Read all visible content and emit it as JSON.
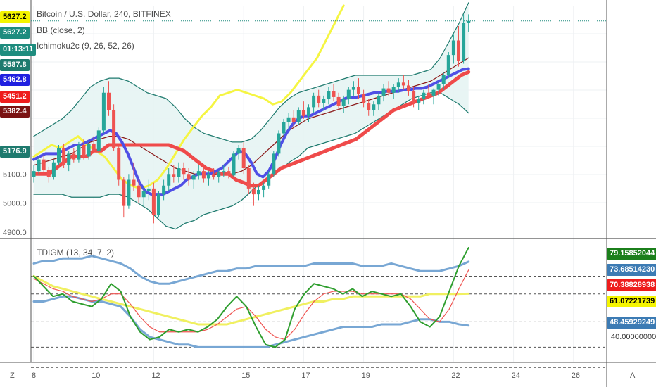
{
  "header": {
    "symbol_title": "Bitcoin / U.S. Dollar, 240, BITFINEX",
    "indicator_1": "BB (close, 2)",
    "indicator_2": "Ichimoku2c (9, 26, 52, 26)",
    "osc_title": "TDIGM (13, 34, 7, 2)"
  },
  "left_badges": [
    {
      "text": "5627.2",
      "bg": "#f5f500",
      "fg": "#000000"
    },
    {
      "text": "5627.2",
      "bg": "#1e8c7e",
      "fg": "#ffffff"
    },
    {
      "text": "01:13:11",
      "bg": "#1e8c7e",
      "fg": "#ffffff"
    },
    {
      "text": "5587.8",
      "bg": "#1e7a6e",
      "fg": "#ffffff"
    },
    {
      "text": "5462.8",
      "bg": "#1f1fe0",
      "fg": "#ffffff"
    },
    {
      "text": "5451.2",
      "bg": "#ee1c1c",
      "fg": "#ffffff"
    },
    {
      "text": "5382.4",
      "bg": "#7a1212",
      "fg": "#ffffff"
    },
    {
      "text": "5176.9",
      "bg": "#1e7a6e",
      "fg": "#ffffff"
    }
  ],
  "right_badges": [
    {
      "text": "79.15852044",
      "bg": "#1b7f1b"
    },
    {
      "text": "73.68514230",
      "bg": "#3c7bb4"
    },
    {
      "text": "70.38828938",
      "bg": "#ee1c1c"
    },
    {
      "text": "61.07221739",
      "bg": "#f5f500"
    },
    {
      "text": "48.45929249",
      "bg": "#3c7bb4"
    }
  ],
  "right_plain_label": "40.00000000",
  "price_axis_labels": [
    "5100.0",
    "5000.0",
    "4900.0"
  ],
  "date_labels": [
    "8",
    "10",
    "12",
    "15",
    "17",
    "19",
    "22",
    "24",
    "26"
  ],
  "corner_left": "Z",
  "corner_right": "A",
  "colors": {
    "up": "#26a69a",
    "down": "#ef5350",
    "tenkan": "#4f4fe6",
    "kijun": "#ef4a4a",
    "chikou": "#f5f542",
    "bb_band": "#1e7a6e",
    "bb_mid": "#8b1a1a",
    "osc_green": "#2e9e2e",
    "osc_red": "#ef5350",
    "osc_yellow": "#f0f060",
    "osc_blue": "#78a7d4"
  },
  "chart_data": {
    "type": "candlestick",
    "price_axis": {
      "ylim": [
        4880,
        5680
      ],
      "labeled_ticks": [
        5000,
        5100
      ]
    },
    "x_dates": [
      "8",
      "10",
      "12",
      "15",
      "17",
      "19",
      "22",
      "24",
      "26"
    ],
    "x_date_index": [
      0,
      12,
      24,
      42,
      54,
      66,
      84,
      96,
      108
    ],
    "candles": [
      [
        5090,
        5130,
        5070,
        5110
      ],
      [
        5110,
        5160,
        5100,
        5150
      ],
      [
        5150,
        5165,
        5100,
        5115
      ],
      [
        5115,
        5125,
        5070,
        5090
      ],
      [
        5090,
        5150,
        5080,
        5140
      ],
      [
        5140,
        5200,
        5130,
        5190
      ],
      [
        5190,
        5205,
        5120,
        5130
      ],
      [
        5130,
        5180,
        5110,
        5170
      ],
      [
        5170,
        5190,
        5140,
        5150
      ],
      [
        5150,
        5210,
        5140,
        5200
      ],
      [
        5200,
        5220,
        5150,
        5160
      ],
      [
        5160,
        5215,
        5150,
        5205
      ],
      [
        5205,
        5230,
        5170,
        5180
      ],
      [
        5180,
        5260,
        5170,
        5250
      ],
      [
        5250,
        5400,
        5240,
        5380
      ],
      [
        5380,
        5420,
        5300,
        5320
      ],
      [
        5320,
        5340,
        5180,
        5190
      ],
      [
        5190,
        5200,
        5060,
        5080
      ],
      [
        5080,
        5090,
        4950,
        4990
      ],
      [
        4990,
        5100,
        4980,
        5080
      ],
      [
        5080,
        5140,
        5040,
        5060
      ],
      [
        5060,
        5080,
        5000,
        5020
      ],
      [
        5020,
        5060,
        4990,
        5040
      ],
      [
        5040,
        5080,
        5010,
        5050
      ],
      [
        5050,
        5070,
        4930,
        4960
      ],
      [
        4960,
        5040,
        4950,
        5030
      ],
      [
        5030,
        5080,
        5010,
        5060
      ],
      [
        5060,
        5120,
        5040,
        5100
      ],
      [
        5100,
        5130,
        5070,
        5090
      ],
      [
        5090,
        5140,
        5070,
        5120
      ],
      [
        5120,
        5140,
        5080,
        5100
      ],
      [
        5100,
        5120,
        5060,
        5080
      ],
      [
        5080,
        5110,
        5050,
        5095
      ],
      [
        5095,
        5130,
        5080,
        5110
      ],
      [
        5110,
        5120,
        5070,
        5085
      ],
      [
        5085,
        5110,
        5060,
        5100
      ],
      [
        5100,
        5120,
        5080,
        5090
      ],
      [
        5090,
        5115,
        5070,
        5105
      ],
      [
        5105,
        5130,
        5090,
        5110
      ],
      [
        5110,
        5125,
        5085,
        5095
      ],
      [
        5095,
        5180,
        5090,
        5170
      ],
      [
        5170,
        5200,
        5150,
        5190
      ],
      [
        5190,
        5210,
        5100,
        5120
      ],
      [
        5120,
        5130,
        5030,
        5050
      ],
      [
        5050,
        5070,
        4990,
        5030
      ],
      [
        5030,
        5060,
        5010,
        5045
      ],
      [
        5045,
        5070,
        5020,
        5060
      ],
      [
        5060,
        5110,
        5050,
        5100
      ],
      [
        5100,
        5180,
        5090,
        5170
      ],
      [
        5170,
        5250,
        5160,
        5240
      ],
      [
        5240,
        5290,
        5230,
        5280
      ],
      [
        5280,
        5310,
        5250,
        5295
      ],
      [
        5295,
        5320,
        5260,
        5280
      ],
      [
        5280,
        5330,
        5270,
        5320
      ],
      [
        5320,
        5350,
        5290,
        5300
      ],
      [
        5300,
        5340,
        5280,
        5330
      ],
      [
        5330,
        5380,
        5310,
        5370
      ],
      [
        5370,
        5390,
        5330,
        5345
      ],
      [
        5345,
        5370,
        5320,
        5360
      ],
      [
        5360,
        5400,
        5340,
        5385
      ],
      [
        5385,
        5410,
        5350,
        5365
      ],
      [
        5365,
        5380,
        5320,
        5335
      ],
      [
        5335,
        5370,
        5310,
        5360
      ],
      [
        5360,
        5400,
        5340,
        5390
      ],
      [
        5390,
        5420,
        5370,
        5400
      ],
      [
        5400,
        5430,
        5360,
        5375
      ],
      [
        5375,
        5390,
        5330,
        5345
      ],
      [
        5345,
        5360,
        5300,
        5320
      ],
      [
        5320,
        5350,
        5300,
        5340
      ],
      [
        5340,
        5380,
        5320,
        5370
      ],
      [
        5370,
        5410,
        5350,
        5395
      ],
      [
        5395,
        5420,
        5370,
        5380
      ],
      [
        5380,
        5410,
        5360,
        5400
      ],
      [
        5400,
        5430,
        5380,
        5415
      ],
      [
        5415,
        5440,
        5390,
        5405
      ],
      [
        5405,
        5425,
        5370,
        5385
      ],
      [
        5385,
        5400,
        5330,
        5345
      ],
      [
        5345,
        5370,
        5320,
        5360
      ],
      [
        5360,
        5390,
        5340,
        5380
      ],
      [
        5380,
        5410,
        5360,
        5370
      ],
      [
        5370,
        5395,
        5340,
        5390
      ],
      [
        5390,
        5420,
        5370,
        5410
      ],
      [
        5410,
        5450,
        5390,
        5440
      ],
      [
        5440,
        5520,
        5430,
        5510
      ],
      [
        5510,
        5580,
        5480,
        5560
      ],
      [
        5560,
        5610,
        5470,
        5490
      ],
      [
        5490,
        5650,
        5480,
        5620
      ],
      [
        5620,
        5650,
        5590,
        5627.2
      ]
    ],
    "tenkan": [
      5150,
      5160,
      5170,
      5170,
      5170,
      5180,
      5190,
      5200,
      5200,
      5210,
      5220,
      5230,
      5240,
      5250,
      5240,
      5210,
      5170,
      5120,
      5070,
      5040,
      5030,
      5030,
      5030,
      5040,
      5050,
      5060,
      5080,
      5090,
      5100,
      5100,
      5100,
      5110,
      5120,
      5140,
      5160,
      5180,
      5170,
      5140,
      5100,
      5090,
      5110,
      5150,
      5200,
      5240,
      5270,
      5290,
      5300,
      5300,
      5310,
      5320,
      5330,
      5340,
      5350,
      5360,
      5365,
      5365,
      5370,
      5375,
      5380,
      5380,
      5385,
      5385,
      5385,
      5390,
      5390,
      5395,
      5395,
      5400,
      5410,
      5420,
      5430,
      5440,
      5450,
      5460,
      5462.8
    ],
    "kijun": [
      5100,
      5100,
      5100,
      5120,
      5140,
      5160,
      5160,
      5160,
      5180,
      5180,
      5200,
      5200,
      5200,
      5200,
      5200,
      5200,
      5200,
      5200,
      5200,
      5190,
      5180,
      5160,
      5140,
      5120,
      5110,
      5100,
      5100,
      5080,
      5070,
      5060,
      5060,
      5080,
      5100,
      5120,
      5130,
      5140,
      5150,
      5160,
      5170,
      5180,
      5190,
      5200,
      5210,
      5220,
      5240,
      5260,
      5280,
      5300,
      5320,
      5330,
      5340,
      5350,
      5360,
      5370,
      5380,
      5400,
      5420,
      5440,
      5451.2
    ],
    "bb": {
      "upper": [
        5230,
        5250,
        5270,
        5290,
        5320,
        5360,
        5400,
        5420,
        5430,
        5430,
        5420,
        5400,
        5380,
        5370,
        5360,
        5330,
        5290,
        5260,
        5240,
        5230,
        5220,
        5210,
        5210,
        5220,
        5250,
        5290,
        5330,
        5360,
        5380,
        5390,
        5400,
        5410,
        5420,
        5430,
        5440,
        5440,
        5440,
        5440,
        5440,
        5440,
        5440,
        5450,
        5460,
        5500,
        5560,
        5620,
        5690
      ],
      "middle": [
        5130,
        5140,
        5150,
        5160,
        5170,
        5190,
        5210,
        5220,
        5230,
        5230,
        5220,
        5200,
        5180,
        5160,
        5140,
        5120,
        5110,
        5100,
        5100,
        5100,
        5100,
        5100,
        5110,
        5130,
        5160,
        5190,
        5220,
        5250,
        5270,
        5290,
        5300,
        5310,
        5320,
        5330,
        5340,
        5350,
        5360,
        5370,
        5380,
        5390,
        5400,
        5410,
        5420,
        5440,
        5460,
        5480,
        5500
      ],
      "lower": [
        5030,
        5030,
        5030,
        5030,
        5020,
        5020,
        5020,
        5020,
        5030,
        5030,
        5020,
        5000,
        4980,
        4950,
        4920,
        4910,
        4930,
        4940,
        4960,
        4970,
        4980,
        4990,
        5010,
        5040,
        5070,
        5090,
        5110,
        5140,
        5160,
        5190,
        5200,
        5210,
        5220,
        5230,
        5240,
        5260,
        5280,
        5300,
        5320,
        5340,
        5360,
        5370,
        5380,
        5380,
        5360,
        5340,
        5310
      ]
    },
    "chikou": [
      5160,
      5180,
      5200,
      5190,
      5210,
      5230,
      5200,
      5180,
      5160,
      5120,
      5080,
      5060,
      5050,
      5060,
      5080,
      5120,
      5170,
      5220,
      5260,
      5300,
      5330,
      5370,
      5380,
      5390,
      5380,
      5370,
      5360,
      5340,
      5350,
      5380,
      5420,
      5460,
      5500,
      5560,
      5620,
      5680
    ],
    "oscillator": {
      "ylim": [
        34,
        82
      ],
      "levels": [
        32,
        40,
        50,
        61,
        68
      ],
      "labels": [
        "79.15852044",
        "73.68514230",
        "70.38828938",
        "61.07221739",
        "48.45929249",
        "40.00000000"
      ],
      "green": [
        68,
        64,
        60,
        61,
        58,
        57,
        56,
        59,
        65,
        62,
        52,
        46,
        43,
        44,
        47,
        46,
        47,
        46,
        48,
        51,
        56,
        60,
        56,
        48,
        41,
        40,
        43,
        55,
        61,
        65,
        64,
        63,
        61,
        63,
        60,
        62,
        61,
        60,
        61,
        56,
        50,
        48,
        52,
        62,
        72,
        79.2
      ],
      "red": [
        67,
        65,
        63,
        62,
        60,
        59,
        58,
        59,
        61,
        61,
        57,
        52,
        48,
        46,
        46,
        46,
        46,
        46,
        47,
        49,
        52,
        55,
        56,
        52,
        47,
        44,
        43,
        47,
        53,
        58,
        61,
        62,
        62,
        62,
        61,
        61,
        61,
        61,
        61,
        59,
        55,
        51,
        50,
        55,
        63,
        70.4
      ],
      "yellow": [
        68,
        66,
        64,
        63,
        62,
        61,
        60,
        59,
        58,
        57,
        56,
        55,
        54,
        53,
        52,
        51,
        50,
        49,
        49,
        49,
        49,
        50,
        51,
        52,
        53,
        54,
        55,
        56,
        57,
        58,
        58,
        59,
        59,
        60,
        60,
        60,
        60,
        60,
        60,
        60,
        60,
        61,
        61,
        61,
        61,
        61.1
      ],
      "blue_upper": [
        73,
        74,
        74,
        75,
        75,
        75,
        76,
        75,
        74,
        73,
        71,
        68,
        66,
        65,
        65,
        66,
        67,
        68,
        69,
        70,
        70,
        71,
        71,
        72,
        72,
        72,
        72,
        72,
        72,
        73,
        73,
        73,
        73,
        73,
        72,
        72,
        72,
        73,
        72,
        71,
        70,
        70,
        70,
        71,
        72,
        73.7
      ],
      "blue_lower": [
        58,
        58,
        59,
        60,
        60,
        59,
        58,
        58,
        57,
        56,
        52,
        47,
        44,
        43,
        42,
        41,
        41,
        40,
        40,
        40,
        40,
        40,
        40,
        40,
        40,
        41,
        42,
        43,
        44,
        45,
        46,
        47,
        48,
        48,
        48,
        48,
        49,
        49,
        49,
        50,
        51,
        51,
        50,
        50,
        49,
        48.5
      ]
    }
  }
}
